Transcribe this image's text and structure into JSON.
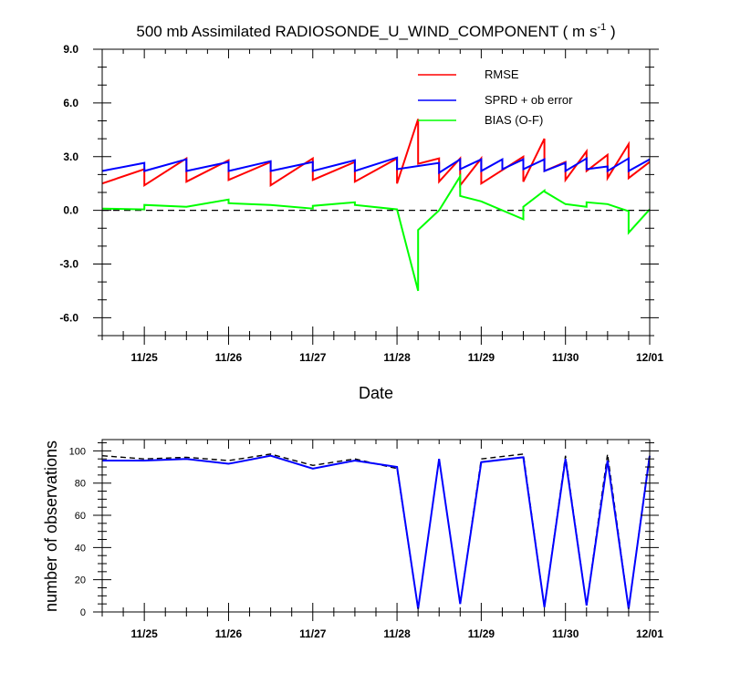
{
  "chart_data": [
    {
      "type": "line",
      "title": "500 mb Assimilated RADIOSONDE_U_WIND_COMPONENT ( m s",
      "title_sup": "-1",
      "title_end": " )",
      "xlabel": "Date",
      "ylabel": "",
      "xlim": [
        0,
        6.5
      ],
      "ylim": [
        -7.0,
        9.0
      ],
      "xticks": [
        0.5,
        1.5,
        2.5,
        3.5,
        4.5,
        5.5,
        6.5
      ],
      "xtick_labels": [
        "11/25",
        "11/26",
        "11/27",
        "11/28",
        "11/29",
        "11/30",
        "12/01"
      ],
      "yticks": [
        -6,
        -3,
        0,
        3,
        6,
        9
      ],
      "ytick_labels": [
        "-6.0",
        "-3.0",
        "0.0",
        "3.0",
        "6.0",
        "9.0"
      ],
      "zero_line": true,
      "legend": [
        "RMSE",
        "SPRD + ob error",
        "BIAS (O-F)"
      ],
      "series": [
        {
          "name": "RMSE",
          "color": "#ff0000",
          "points": [
            [
              0.0,
              1.5
            ],
            [
              0.5,
              2.3
            ],
            [
              0.5,
              1.4
            ],
            [
              1.0,
              2.9
            ],
            [
              1.0,
              1.6
            ],
            [
              1.5,
              2.8
            ],
            [
              1.5,
              1.7
            ],
            [
              2.0,
              2.7
            ],
            [
              2.0,
              1.4
            ],
            [
              2.5,
              2.9
            ],
            [
              2.5,
              1.7
            ],
            [
              3.0,
              2.7
            ],
            [
              3.0,
              1.6
            ],
            [
              3.5,
              2.9
            ],
            [
              3.5,
              1.5
            ],
            [
              3.75,
              5.1
            ],
            [
              3.75,
              2.6
            ],
            [
              4.0,
              2.9
            ],
            [
              4.0,
              1.6
            ],
            [
              4.25,
              2.9
            ],
            [
              4.25,
              1.4
            ],
            [
              4.5,
              2.9
            ],
            [
              4.5,
              1.5
            ],
            [
              5.0,
              3.0
            ],
            [
              5.0,
              1.6
            ],
            [
              5.25,
              4.0
            ],
            [
              5.25,
              2.2
            ],
            [
              5.5,
              2.7
            ],
            [
              5.5,
              1.7
            ],
            [
              5.75,
              3.3
            ],
            [
              5.75,
              2.2
            ],
            [
              6.0,
              3.1
            ],
            [
              6.0,
              1.8
            ],
            [
              6.25,
              3.7
            ],
            [
              6.25,
              1.8
            ],
            [
              6.5,
              2.7
            ]
          ]
        },
        {
          "name": "SPRD + ob error",
          "color": "#0000ff",
          "points": [
            [
              0.0,
              2.2
            ],
            [
              0.5,
              2.65
            ],
            [
              0.5,
              2.2
            ],
            [
              1.0,
              2.85
            ],
            [
              1.0,
              2.2
            ],
            [
              1.5,
              2.7
            ],
            [
              1.5,
              2.2
            ],
            [
              2.0,
              2.75
            ],
            [
              2.0,
              2.2
            ],
            [
              2.5,
              2.7
            ],
            [
              2.5,
              2.2
            ],
            [
              3.0,
              2.8
            ],
            [
              3.0,
              2.2
            ],
            [
              3.5,
              2.95
            ],
            [
              3.5,
              2.3
            ],
            [
              4.0,
              2.65
            ],
            [
              4.0,
              2.1
            ],
            [
              4.25,
              2.85
            ],
            [
              4.25,
              2.3
            ],
            [
              4.5,
              2.85
            ],
            [
              4.5,
              2.2
            ],
            [
              4.75,
              2.85
            ],
            [
              4.75,
              2.3
            ],
            [
              5.0,
              2.85
            ],
            [
              5.0,
              2.3
            ],
            [
              5.25,
              2.85
            ],
            [
              5.25,
              2.2
            ],
            [
              5.5,
              2.65
            ],
            [
              5.5,
              2.2
            ],
            [
              5.75,
              2.9
            ],
            [
              5.75,
              2.3
            ],
            [
              6.0,
              2.45
            ],
            [
              6.0,
              2.2
            ],
            [
              6.25,
              2.9
            ],
            [
              6.25,
              2.2
            ],
            [
              6.5,
              2.85
            ]
          ]
        },
        {
          "name": "BIAS (O-F)",
          "color": "#00ff00",
          "points": [
            [
              0.0,
              0.1
            ],
            [
              0.5,
              0.05
            ],
            [
              0.5,
              0.3
            ],
            [
              1.0,
              0.2
            ],
            [
              1.5,
              0.6
            ],
            [
              1.5,
              0.4
            ],
            [
              2.0,
              0.3
            ],
            [
              2.5,
              0.1
            ],
            [
              2.5,
              0.25
            ],
            [
              3.0,
              0.45
            ],
            [
              3.0,
              0.3
            ],
            [
              3.5,
              0.05
            ],
            [
              3.75,
              -4.5
            ],
            [
              3.75,
              -1.1
            ],
            [
              4.0,
              0.0
            ],
            [
              4.25,
              1.9
            ],
            [
              4.25,
              0.8
            ],
            [
              4.5,
              0.5
            ],
            [
              5.0,
              -0.5
            ],
            [
              5.0,
              0.2
            ],
            [
              5.25,
              1.1
            ],
            [
              5.25,
              1.05
            ],
            [
              5.5,
              0.35
            ],
            [
              5.75,
              0.2
            ],
            [
              5.75,
              0.45
            ],
            [
              6.0,
              0.35
            ],
            [
              6.25,
              -0.05
            ],
            [
              6.25,
              -1.25
            ],
            [
              6.5,
              0.05
            ]
          ]
        }
      ]
    },
    {
      "type": "line",
      "title": "",
      "xlabel": "",
      "ylabel": "number of observations",
      "xlim": [
        0,
        6.5
      ],
      "ylim": [
        0,
        107
      ],
      "xticks": [
        0.5,
        1.5,
        2.5,
        3.5,
        4.5,
        5.5,
        6.5
      ],
      "xtick_labels": [
        "11/25",
        "11/26",
        "11/27",
        "11/28",
        "11/29",
        "11/30",
        "12/01"
      ],
      "yticks": [
        0,
        20,
        40,
        60,
        80,
        100
      ],
      "ytick_labels": [
        "0",
        "20",
        "40",
        "60",
        "80",
        "100"
      ],
      "series": [
        {
          "name": "dashed",
          "color": "#000000",
          "dashed": true,
          "points": [
            [
              0.0,
              97
            ],
            [
              0.5,
              95
            ],
            [
              1.0,
              96
            ],
            [
              1.5,
              94
            ],
            [
              2.0,
              98
            ],
            [
              2.5,
              91
            ],
            [
              3.0,
              95
            ],
            [
              3.5,
              89
            ],
            [
              3.75,
              2
            ],
            [
              4.0,
              95
            ],
            [
              4.25,
              5
            ],
            [
              4.5,
              95
            ],
            [
              5.0,
              98
            ],
            [
              5.25,
              3
            ],
            [
              5.5,
              97
            ],
            [
              5.75,
              4
            ],
            [
              6.0,
              98
            ],
            [
              6.25,
              2
            ],
            [
              6.5,
              98
            ]
          ]
        },
        {
          "name": "solid",
          "color": "#0000ff",
          "dashed": false,
          "points": [
            [
              0.0,
              94
            ],
            [
              0.5,
              94
            ],
            [
              1.0,
              95
            ],
            [
              1.5,
              92
            ],
            [
              2.0,
              97
            ],
            [
              2.5,
              89
            ],
            [
              3.0,
              94
            ],
            [
              3.5,
              90
            ],
            [
              3.75,
              2
            ],
            [
              4.0,
              95
            ],
            [
              4.25,
              5
            ],
            [
              4.5,
              93
            ],
            [
              5.0,
              96
            ],
            [
              5.25,
              3
            ],
            [
              5.5,
              95
            ],
            [
              5.75,
              4
            ],
            [
              6.0,
              94
            ],
            [
              6.25,
              2
            ],
            [
              6.5,
              97
            ]
          ]
        }
      ]
    }
  ]
}
